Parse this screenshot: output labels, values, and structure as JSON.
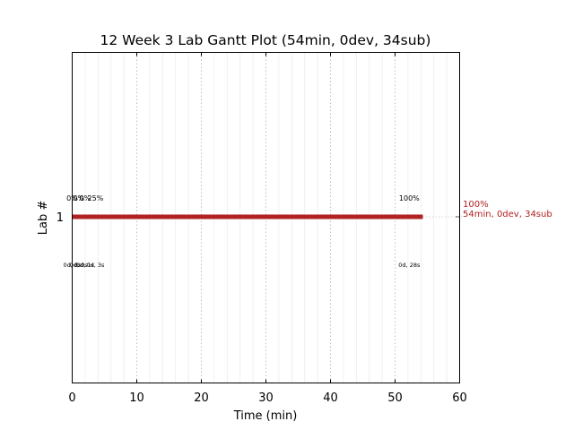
{
  "chart_data": {
    "type": "gantt",
    "title": "12 Week 3 Lab Gantt Plot (54min, 0dev, 34sub)",
    "xlabel": "Time (min)",
    "ylabel": "Lab #",
    "xlim": [
      0,
      60
    ],
    "x_ticks": [
      0,
      10,
      20,
      30,
      40,
      50,
      60
    ],
    "grid": "x-major dotted, x-minor faint",
    "categories": [
      "1"
    ],
    "bars": [
      {
        "lab": "1",
        "start": 0,
        "end": 54.3,
        "color": "#b22222"
      }
    ],
    "progress_markers": [
      {
        "x": 0.0,
        "pct": "0%",
        "time": "0d, 0s"
      },
      {
        "x": 1.0,
        "pct": "0%",
        "time": "0d, 0s"
      },
      {
        "x": 2.0,
        "pct": "0%",
        "time": "0d, 1s"
      },
      {
        "x": 3.6,
        "pct": "25%",
        "time": "0d, 3s"
      },
      {
        "x": 52.2,
        "pct": "100%",
        "time": "0d, 28s"
      }
    ],
    "end_annotation": {
      "lines": [
        "100%",
        "54min, 0dev, 34sub"
      ],
      "color": "#b22222"
    }
  }
}
